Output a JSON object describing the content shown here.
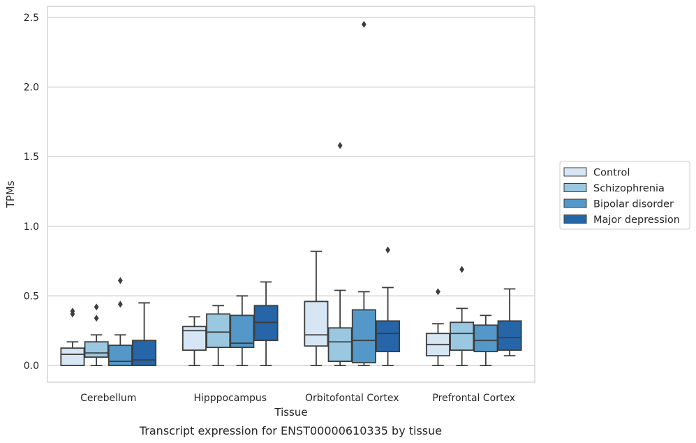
{
  "chart_data": {
    "type": "box",
    "caption": "Transcript expression for ENST00000610335 by tissue",
    "xlabel": "Tissue",
    "ylabel": "TPMs",
    "ylim": [
      -0.12,
      2.58
    ],
    "yticks": [
      0.0,
      0.5,
      1.0,
      1.5,
      2.0,
      2.5
    ],
    "ytick_labels": [
      "0.0",
      "0.5",
      "1.0",
      "1.5",
      "2.0",
      "2.5"
    ],
    "grid": "horizontal",
    "legend_position": "right",
    "categories": [
      "Cerebellum",
      "Hipppocampus",
      "Orbitofontal Cortex",
      "Prefrontal Cortex"
    ],
    "series": [
      {
        "name": "Control",
        "color": "#d6e6f4",
        "boxes": [
          {
            "whisker_low": 0.0,
            "q1": 0.0,
            "median": 0.08,
            "q3": 0.125,
            "whisker_high": 0.17,
            "outliers": [
              0.37,
              0.39
            ]
          },
          {
            "whisker_low": 0.0,
            "q1": 0.11,
            "median": 0.25,
            "q3": 0.28,
            "whisker_high": 0.35,
            "outliers": []
          },
          {
            "whisker_low": 0.0,
            "q1": 0.14,
            "median": 0.22,
            "q3": 0.46,
            "whisker_high": 0.82,
            "outliers": []
          },
          {
            "whisker_low": 0.0,
            "q1": 0.07,
            "median": 0.15,
            "q3": 0.23,
            "whisker_high": 0.3,
            "outliers": [
              0.53
            ]
          }
        ]
      },
      {
        "name": "Schizophrenia",
        "color": "#9ac8e0",
        "boxes": [
          {
            "whisker_low": 0.0,
            "q1": 0.06,
            "median": 0.09,
            "q3": 0.17,
            "whisker_high": 0.22,
            "outliers": [
              0.34,
              0.42
            ]
          },
          {
            "whisker_low": 0.0,
            "q1": 0.13,
            "median": 0.24,
            "q3": 0.37,
            "whisker_high": 0.43,
            "outliers": []
          },
          {
            "whisker_low": 0.0,
            "q1": 0.03,
            "median": 0.17,
            "q3": 0.27,
            "whisker_high": 0.54,
            "outliers": [
              1.58
            ]
          },
          {
            "whisker_low": 0.0,
            "q1": 0.11,
            "median": 0.23,
            "q3": 0.31,
            "whisker_high": 0.41,
            "outliers": [
              0.69
            ]
          }
        ]
      },
      {
        "name": "Bipolar disorder",
        "color": "#5398c8",
        "boxes": [
          {
            "whisker_low": 0.0,
            "q1": 0.0,
            "median": 0.03,
            "q3": 0.145,
            "whisker_high": 0.22,
            "outliers": [
              0.44,
              0.61
            ]
          },
          {
            "whisker_low": 0.0,
            "q1": 0.13,
            "median": 0.16,
            "q3": 0.36,
            "whisker_high": 0.5,
            "outliers": []
          },
          {
            "whisker_low": 0.0,
            "q1": 0.02,
            "median": 0.18,
            "q3": 0.4,
            "whisker_high": 0.53,
            "outliers": [
              2.45
            ]
          },
          {
            "whisker_low": 0.0,
            "q1": 0.1,
            "median": 0.18,
            "q3": 0.29,
            "whisker_high": 0.36,
            "outliers": []
          }
        ]
      },
      {
        "name": "Major depression",
        "color": "#2565a8",
        "boxes": [
          {
            "whisker_low": 0.0,
            "q1": 0.0,
            "median": 0.04,
            "q3": 0.18,
            "whisker_high": 0.45,
            "outliers": []
          },
          {
            "whisker_low": 0.0,
            "q1": 0.18,
            "median": 0.31,
            "q3": 0.43,
            "whisker_high": 0.6,
            "outliers": []
          },
          {
            "whisker_low": 0.0,
            "q1": 0.1,
            "median": 0.23,
            "q3": 0.32,
            "whisker_high": 0.56,
            "outliers": [
              0.83
            ]
          },
          {
            "whisker_low": 0.07,
            "q1": 0.11,
            "median": 0.2,
            "q3": 0.32,
            "whisker_high": 0.55,
            "outliers": []
          }
        ]
      }
    ]
  }
}
